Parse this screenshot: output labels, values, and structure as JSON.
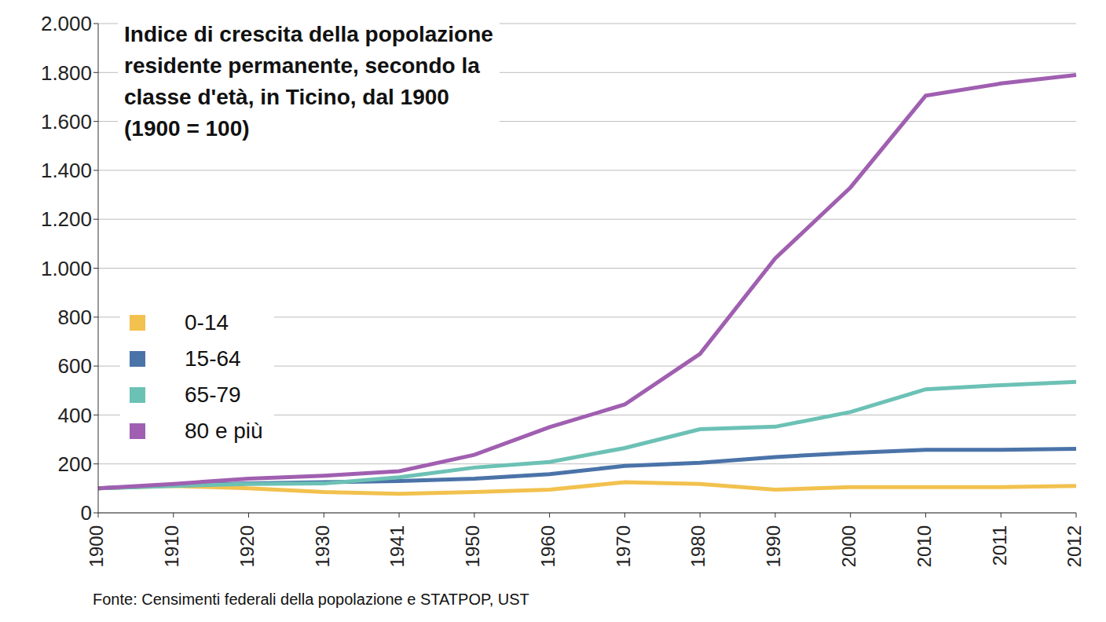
{
  "chart_data": {
    "type": "line",
    "title": "Indice di crescita della popolazione\nresidente permanente, secondo la\nclasse d'età, in Ticino, dal 1900\n(1900 = 100)",
    "source": "Fonte: Censimenti federali della popolazione e STATPOP, UST",
    "categories": [
      "1900",
      "1910",
      "1920",
      "1930",
      "1941",
      "1950",
      "1960",
      "1970",
      "1980",
      "1990",
      "2000",
      "2010",
      "2011",
      "2012"
    ],
    "series": [
      {
        "name": "0-14",
        "color": "#f2c14e",
        "values": [
          100,
          110,
          100,
          85,
          78,
          85,
          95,
          125,
          118,
          95,
          105,
          105,
          105,
          110
        ]
      },
      {
        "name": "15-64",
        "color": "#4a73a8",
        "values": [
          100,
          112,
          120,
          125,
          130,
          140,
          158,
          192,
          205,
          228,
          245,
          258,
          258,
          262
        ]
      },
      {
        "name": "65-79",
        "color": "#6cc1b5",
        "values": [
          100,
          110,
          118,
          120,
          145,
          185,
          208,
          265,
          342,
          352,
          412,
          505,
          522,
          535
        ]
      },
      {
        "name": "80 e più",
        "color": "#a05fb0",
        "values": [
          100,
          118,
          140,
          152,
          170,
          237,
          350,
          443,
          650,
          1040,
          1330,
          1705,
          1755,
          1790
        ]
      }
    ],
    "ylim": [
      0,
      2000
    ],
    "yticks": [
      0,
      200,
      400,
      600,
      800,
      {
        "value": 1000,
        "label": "1.000"
      },
      {
        "value": 1200,
        "label": "1.200"
      },
      {
        "value": 1400,
        "label": "1.400"
      },
      {
        "value": 1600,
        "label": "1.600"
      },
      {
        "value": 1800,
        "label": "1.800"
      },
      {
        "value": 2000,
        "label": "2.000"
      }
    ],
    "grid": true,
    "legend": "left"
  }
}
